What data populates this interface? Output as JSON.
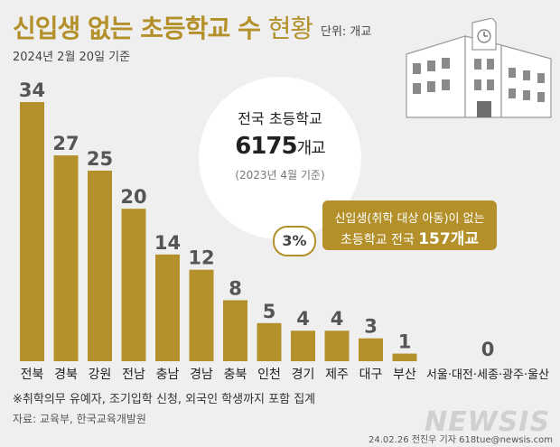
{
  "header": {
    "title_bold": "신입생 없는 초등학교 수",
    "title_light": "현황",
    "unit": "단위: 개교",
    "date": "2024년 2월 20일 기준"
  },
  "info": {
    "line1": "전국 초등학교",
    "count": "6175",
    "count_suffix": "개교",
    "note": "(2023년 4월 기준)"
  },
  "callout": {
    "line1": "신입생(취학 대상 아동)이 없는",
    "line2_prefix": "초등학교 전국",
    "line2_value": "157개교",
    "percent": "3%"
  },
  "footer": {
    "footnote": "※취학의무 유예자, 조기입학 신청, 외국인 학생까지 포함 집계",
    "source": "자료: 교육부, 한국교육개발원",
    "credit": "24.02.26 전진우 기자 618tue@newsis.com",
    "watermark": "NEWSIS"
  },
  "colors": {
    "bar": "#b3902a",
    "background": "#efefef"
  },
  "chart_data": {
    "type": "bar",
    "categories": [
      "전북",
      "경북",
      "강원",
      "전남",
      "충남",
      "경남",
      "충북",
      "인천",
      "경기",
      "제주",
      "대구",
      "부산",
      "서울·대전·세종·광주·울산"
    ],
    "values": [
      34,
      27,
      25,
      20,
      14,
      12,
      8,
      5,
      4,
      4,
      3,
      1,
      0
    ],
    "title": "신입생 없는 초등학교 수 현황",
    "ylim": [
      0,
      34
    ],
    "grid": false,
    "axis": false
  }
}
